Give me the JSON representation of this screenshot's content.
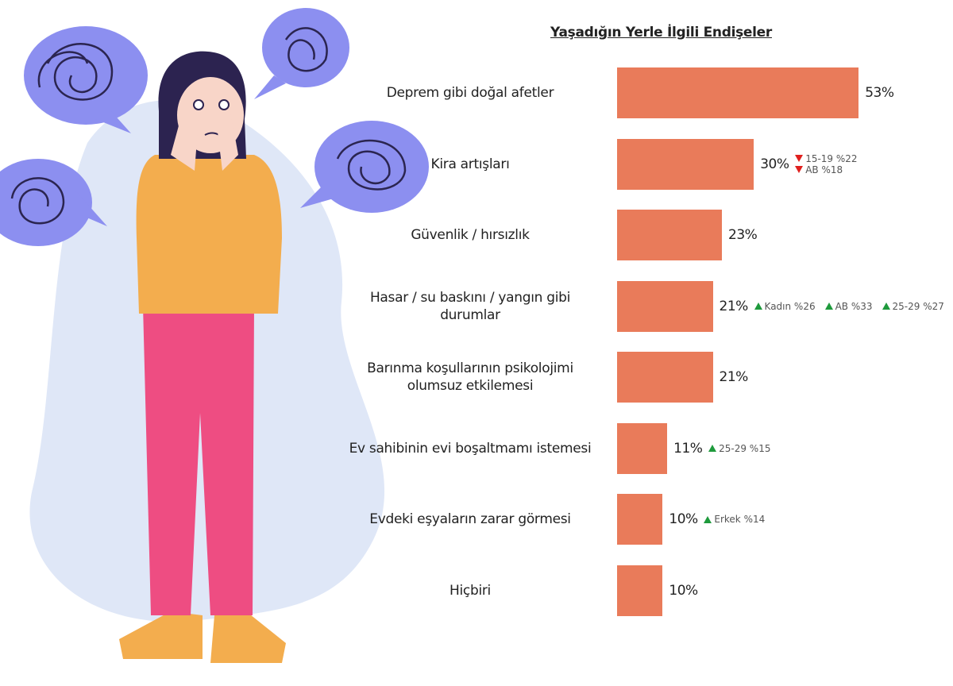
{
  "chart_data": {
    "type": "bar",
    "orientation": "horizontal",
    "title": "Yaşadığın Yerle İlgili Endişeler",
    "categories": [
      "Deprem gibi doğal afetler",
      "Kira artışları",
      "Güvenlik / hırsızlık",
      "Hasar / su baskını / yangın gibi durumlar",
      "Barınma koşullarının psikolojimi olumsuz etkilemesi",
      "Ev sahibinin evi boşaltmamı istemesi",
      "Evdeki eşyaların zarar görmesi",
      "Hiçbiri"
    ],
    "values": [
      53,
      30,
      23,
      21,
      21,
      11,
      10,
      10
    ],
    "value_labels": [
      "53%",
      "30%",
      "23%",
      "21%",
      "21%",
      "11%",
      "10%",
      "10%"
    ],
    "color": "#e97b5a",
    "notes": [
      [],
      [
        {
          "text": "15-19 %22",
          "direction": "down"
        },
        {
          "text": "AB %18",
          "direction": "down"
        }
      ],
      [],
      [
        {
          "text": "Kadın %26",
          "direction": "up"
        },
        {
          "text": "AB %33",
          "direction": "up"
        },
        {
          "text": "25-29 %27",
          "direction": "up"
        }
      ],
      [],
      [
        {
          "text": "25-29 %15",
          "direction": "up"
        }
      ],
      [
        {
          "text": "Erkek %14",
          "direction": "up"
        }
      ],
      []
    ]
  }
}
